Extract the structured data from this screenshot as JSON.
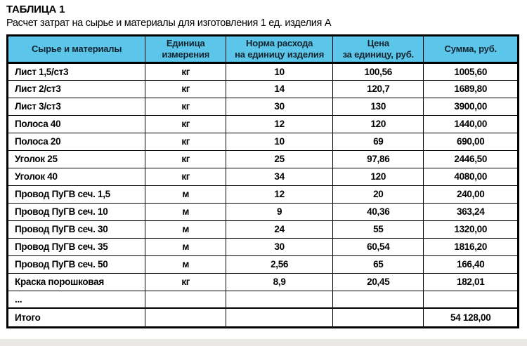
{
  "title": "ТАБЛИЦА 1",
  "subtitle": "Расчет затрат на сырье и материалы для изготовления 1 ед. изделия А",
  "table": {
    "columns": [
      "Сырье и материалы",
      "Единица\nизмерения",
      "Норма расхода\nна единицу изделия",
      "Цена\nза единицу, руб.",
      "Сумма, руб."
    ],
    "rows": [
      [
        "Лист 1,5/ст3",
        "кг",
        "10",
        "100,56",
        "1005,60"
      ],
      [
        "Лист 2/ст3",
        "кг",
        "14",
        "120,7",
        "1689,80"
      ],
      [
        "Лист 3/ст3",
        "кг",
        "30",
        "130",
        "3900,00"
      ],
      [
        "Полоса 40",
        "кг",
        "12",
        "120",
        "1440,00"
      ],
      [
        "Полоса 20",
        "кг",
        "10",
        "69",
        "690,00"
      ],
      [
        "Уголок 25",
        "кг",
        "25",
        "97,86",
        "2446,50"
      ],
      [
        "Уголок 40",
        "кг",
        "34",
        "120",
        "4080,00"
      ],
      [
        "Провод ПуГВ сеч. 1,5",
        "м",
        "12",
        "20",
        "240,00"
      ],
      [
        "Провод ПуГВ сеч. 10",
        "м",
        "9",
        "40,36",
        "363,24"
      ],
      [
        "Провод ПуГВ сеч. 30",
        "м",
        "24",
        "55",
        "1320,00"
      ],
      [
        "Провод ПуГВ сеч. 35",
        "м",
        "30",
        "60,54",
        "1816,20"
      ],
      [
        "Провод ПуГВ сеч. 50",
        "м",
        "2,56",
        "65",
        "166,40"
      ],
      [
        "Краска порошковая",
        "кг",
        "8,9",
        "20,45",
        "182,01"
      ],
      [
        "...",
        "",
        "",
        "",
        ""
      ]
    ],
    "total": {
      "label": "Итого",
      "value": "54 128,00"
    }
  },
  "colors": {
    "header_bg": "#5BC6EA",
    "header_text": "#14242e",
    "border": "#000000",
    "bottom_strip": "#e9e7e4"
  }
}
